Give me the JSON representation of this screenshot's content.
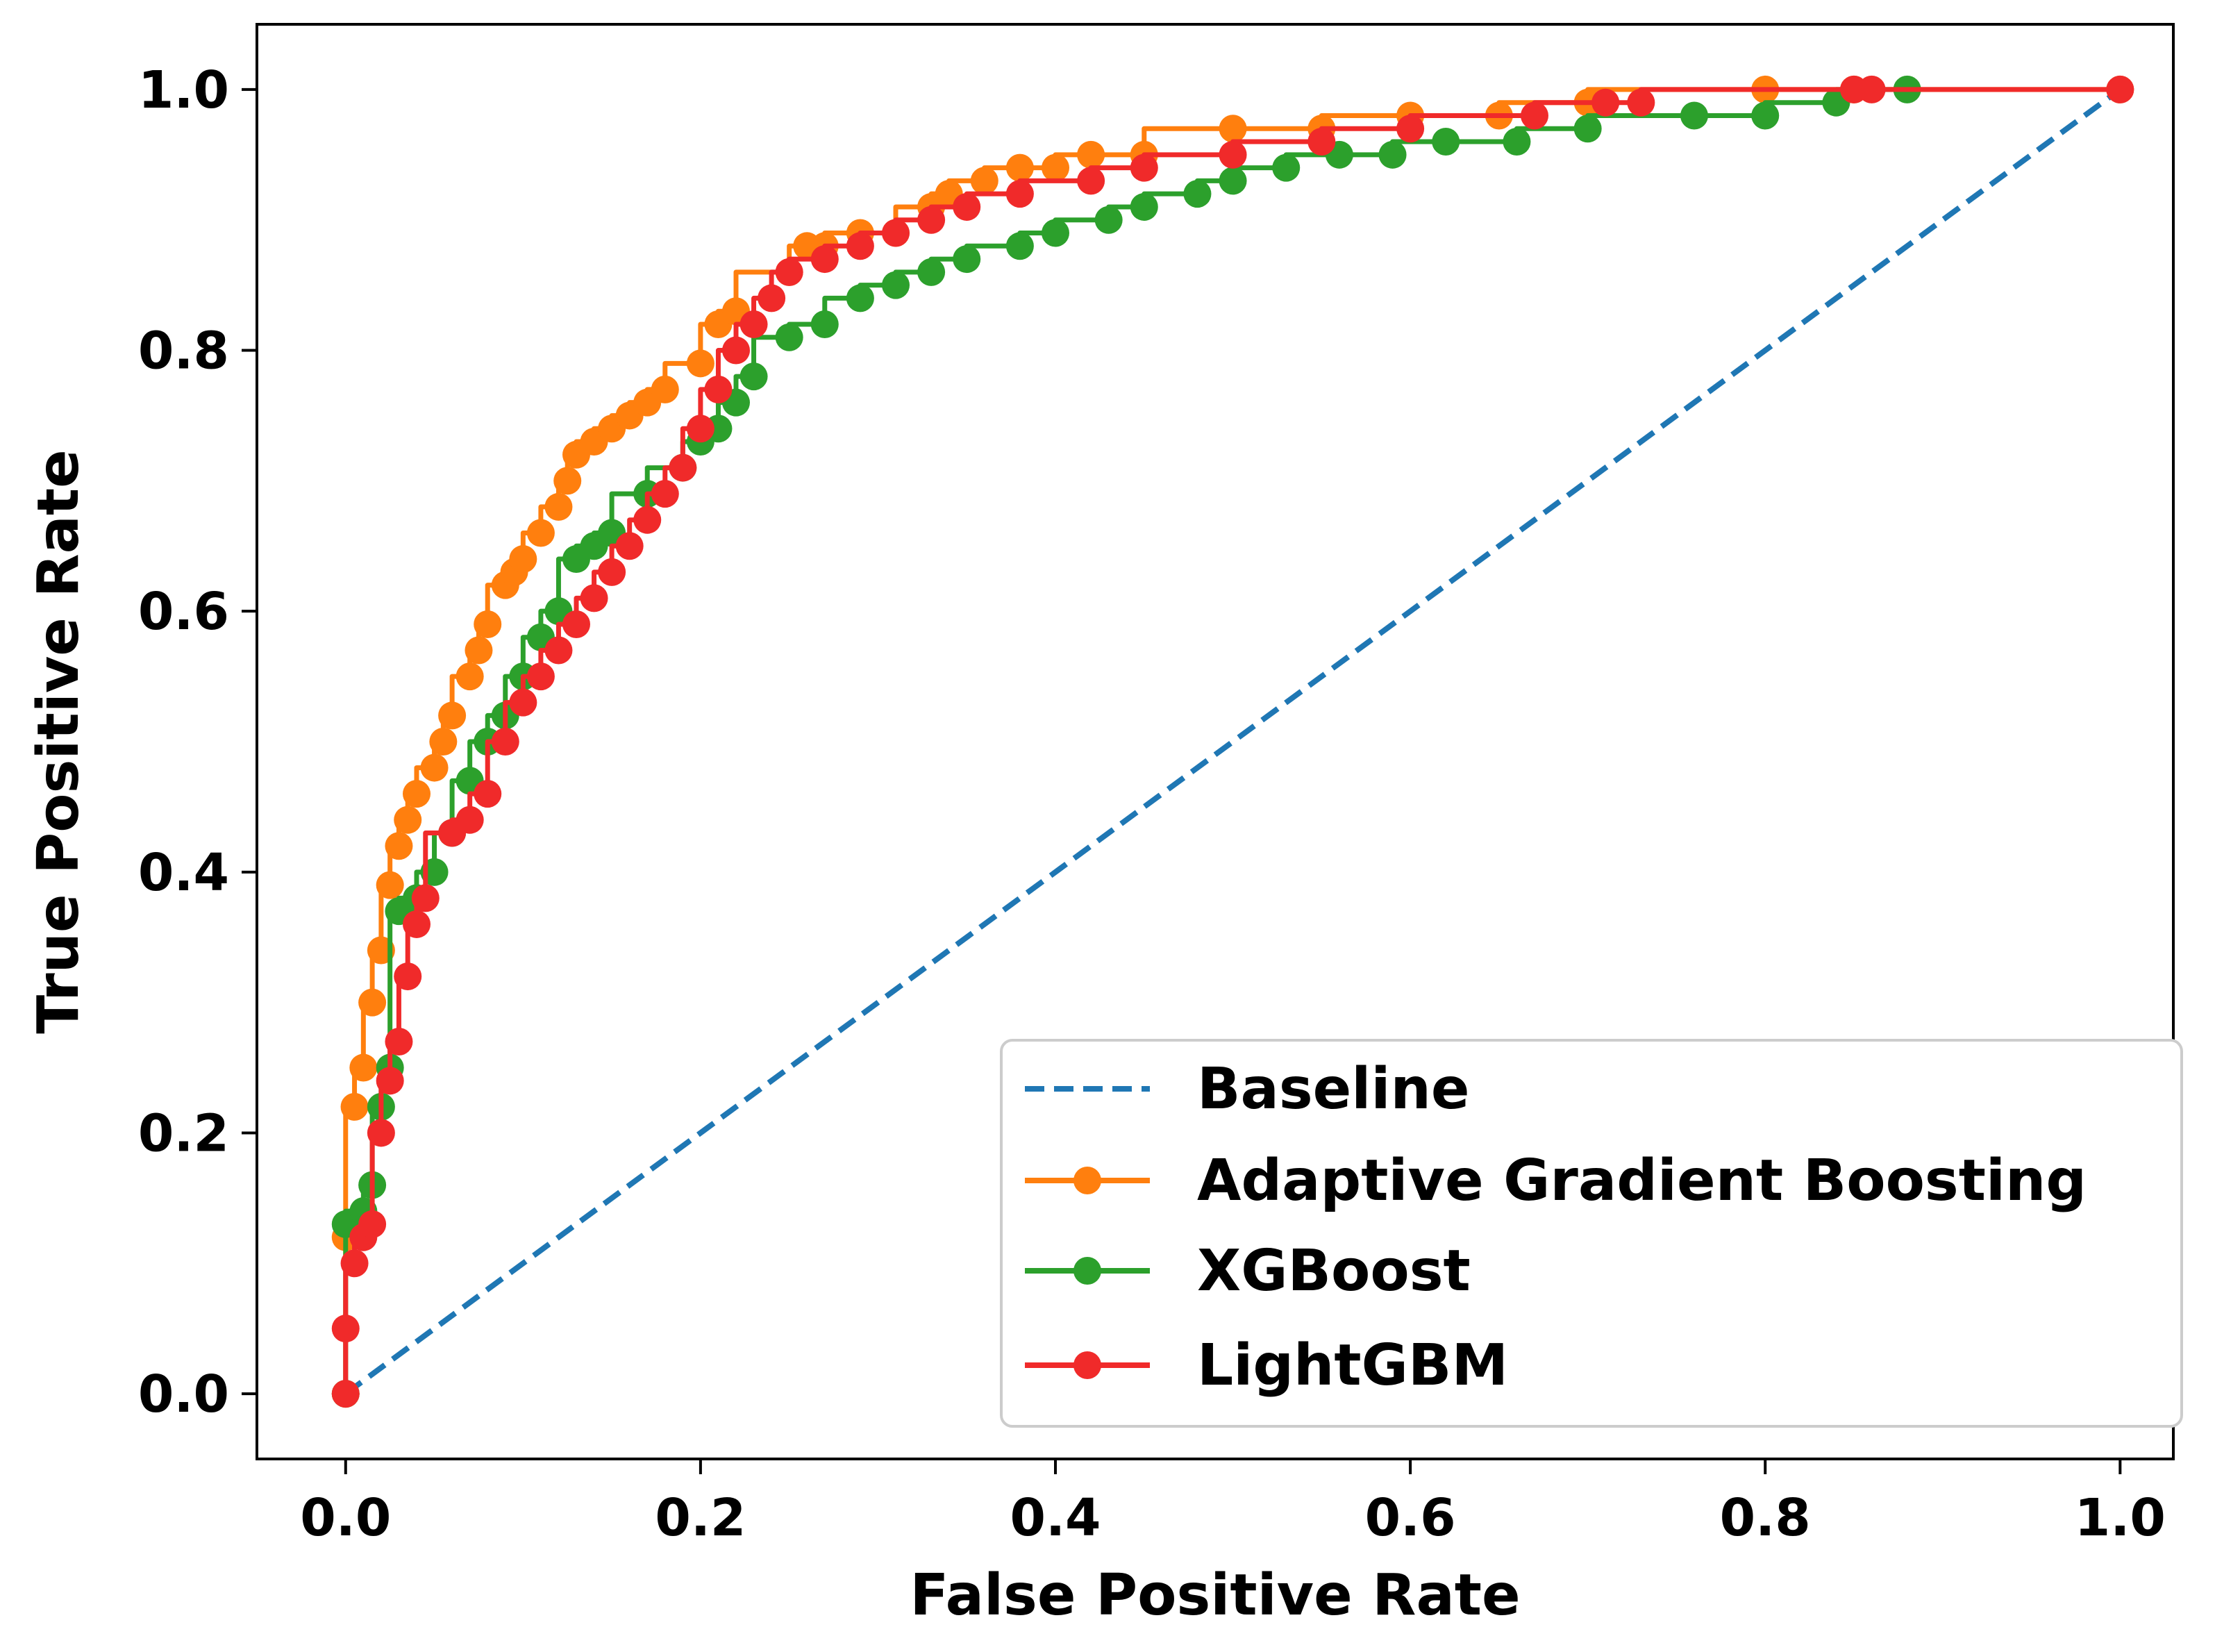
{
  "chart_data": {
    "type": "line",
    "title": "",
    "xlabel": "False Positive Rate",
    "ylabel": "True Positive Rate",
    "xlim": [
      -0.05,
      1.03
    ],
    "ylim": [
      -0.05,
      1.05
    ],
    "xticks": [
      "0.0",
      "0.2",
      "0.4",
      "0.6",
      "0.8",
      "1.0"
    ],
    "yticks": [
      "0.0",
      "0.2",
      "0.4",
      "0.6",
      "0.8",
      "1.0"
    ],
    "grid": false,
    "legend_position": "lower-right",
    "series": [
      {
        "name": "Baseline",
        "color": "#1f77b4",
        "style": "dashed",
        "markers": false,
        "x": [
          0.0,
          1.0
        ],
        "y": [
          0.0,
          1.0
        ]
      },
      {
        "name": "Adaptive Gradient Boosting",
        "color": "#ff7f0e",
        "style": "solid",
        "markers": true,
        "x": [
          0.0,
          0.0,
          0.005,
          0.01,
          0.015,
          0.02,
          0.025,
          0.03,
          0.035,
          0.04,
          0.05,
          0.055,
          0.06,
          0.07,
          0.075,
          0.08,
          0.09,
          0.095,
          0.1,
          0.11,
          0.12,
          0.125,
          0.13,
          0.14,
          0.15,
          0.16,
          0.17,
          0.18,
          0.2,
          0.21,
          0.22,
          0.25,
          0.26,
          0.27,
          0.29,
          0.31,
          0.33,
          0.34,
          0.36,
          0.38,
          0.4,
          0.42,
          0.45,
          0.5,
          0.55,
          0.6,
          0.65,
          0.7,
          0.8,
          0.85,
          1.0
        ],
        "y": [
          0.0,
          0.12,
          0.22,
          0.25,
          0.3,
          0.34,
          0.39,
          0.42,
          0.44,
          0.46,
          0.48,
          0.5,
          0.52,
          0.55,
          0.57,
          0.59,
          0.62,
          0.63,
          0.64,
          0.66,
          0.68,
          0.7,
          0.72,
          0.73,
          0.74,
          0.75,
          0.76,
          0.77,
          0.79,
          0.82,
          0.83,
          0.86,
          0.88,
          0.88,
          0.89,
          0.89,
          0.91,
          0.92,
          0.93,
          0.94,
          0.94,
          0.95,
          0.95,
          0.97,
          0.97,
          0.98,
          0.98,
          0.99,
          1.0,
          1.0,
          1.0
        ]
      },
      {
        "name": "XGBoost",
        "color": "#2ca02c",
        "style": "solid",
        "markers": true,
        "x": [
          0.0,
          0.0,
          0.01,
          0.015,
          0.02,
          0.025,
          0.03,
          0.04,
          0.05,
          0.06,
          0.07,
          0.08,
          0.09,
          0.1,
          0.11,
          0.12,
          0.13,
          0.14,
          0.15,
          0.17,
          0.19,
          0.2,
          0.21,
          0.22,
          0.23,
          0.25,
          0.27,
          0.29,
          0.31,
          0.33,
          0.35,
          0.38,
          0.4,
          0.43,
          0.45,
          0.48,
          0.5,
          0.53,
          0.56,
          0.59,
          0.62,
          0.66,
          0.7,
          0.76,
          0.8,
          0.84,
          0.88
        ],
        "y": [
          0.0,
          0.13,
          0.14,
          0.16,
          0.22,
          0.25,
          0.37,
          0.38,
          0.4,
          0.43,
          0.47,
          0.5,
          0.52,
          0.55,
          0.58,
          0.6,
          0.64,
          0.65,
          0.66,
          0.69,
          0.71,
          0.73,
          0.74,
          0.76,
          0.78,
          0.81,
          0.82,
          0.84,
          0.85,
          0.86,
          0.87,
          0.88,
          0.89,
          0.9,
          0.91,
          0.92,
          0.93,
          0.94,
          0.95,
          0.95,
          0.96,
          0.96,
          0.97,
          0.98,
          0.98,
          0.99,
          1.0
        ]
      },
      {
        "name": "LightGBM",
        "color": "#f02a2a",
        "style": "solid",
        "markers": true,
        "x": [
          0.0,
          0.0,
          0.005,
          0.01,
          0.015,
          0.02,
          0.025,
          0.03,
          0.035,
          0.04,
          0.045,
          0.06,
          0.07,
          0.08,
          0.09,
          0.1,
          0.11,
          0.12,
          0.13,
          0.14,
          0.15,
          0.16,
          0.17,
          0.18,
          0.19,
          0.2,
          0.21,
          0.22,
          0.23,
          0.24,
          0.25,
          0.27,
          0.29,
          0.31,
          0.33,
          0.35,
          0.38,
          0.42,
          0.45,
          0.5,
          0.55,
          0.6,
          0.67,
          0.71,
          0.73,
          0.85,
          0.86,
          1.0
        ],
        "y": [
          0.0,
          0.05,
          0.1,
          0.12,
          0.13,
          0.2,
          0.24,
          0.27,
          0.32,
          0.36,
          0.38,
          0.43,
          0.44,
          0.46,
          0.5,
          0.53,
          0.55,
          0.57,
          0.59,
          0.61,
          0.63,
          0.65,
          0.67,
          0.69,
          0.71,
          0.74,
          0.77,
          0.8,
          0.82,
          0.84,
          0.86,
          0.87,
          0.88,
          0.89,
          0.9,
          0.91,
          0.92,
          0.93,
          0.94,
          0.95,
          0.96,
          0.97,
          0.98,
          0.99,
          0.99,
          1.0,
          1.0,
          1.0
        ]
      }
    ]
  }
}
